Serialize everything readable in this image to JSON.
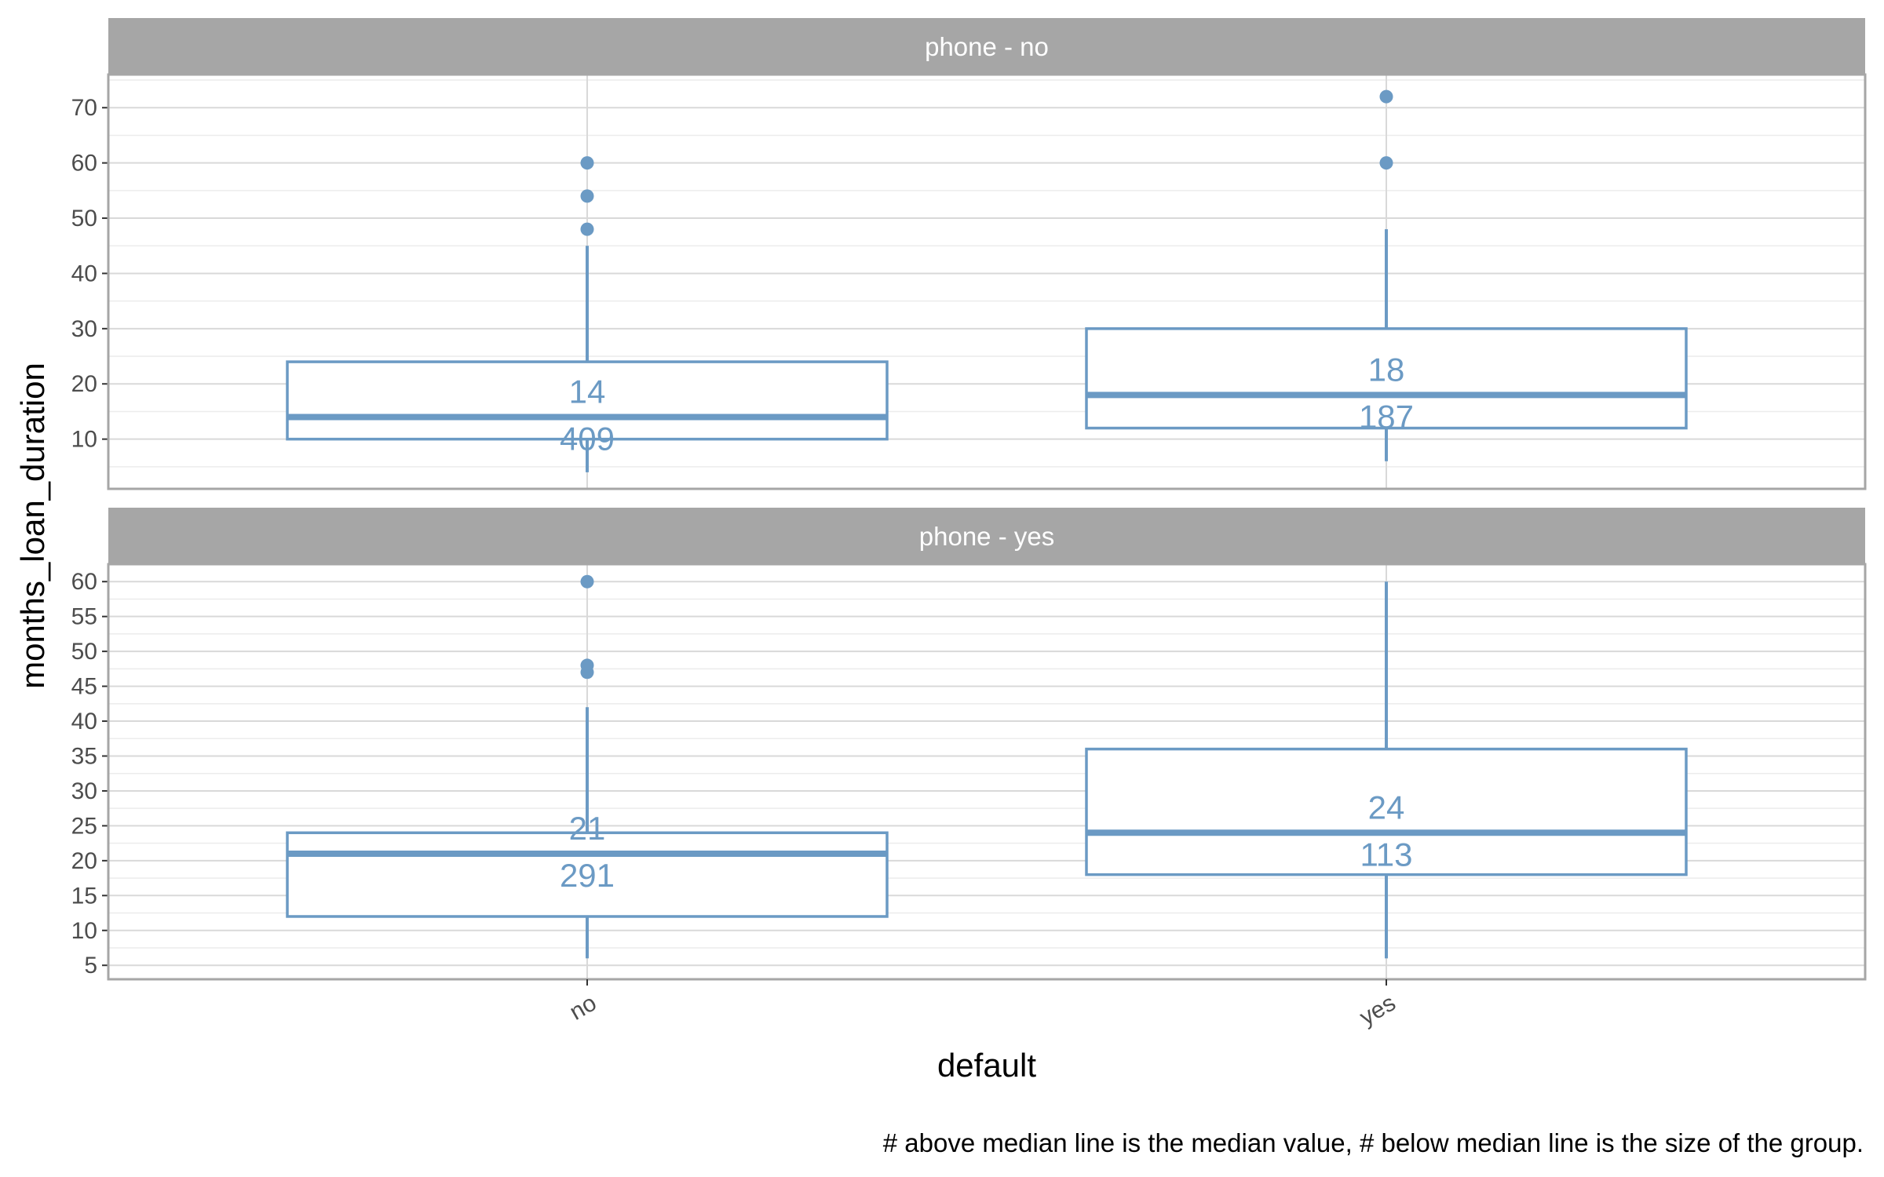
{
  "chart_data": {
    "type": "boxplot",
    "facet_by": "phone",
    "xlabel": "default",
    "ylabel": "months_loan_duration",
    "categories": [
      "no",
      "yes"
    ],
    "caption": "# above median line is the median value, # below median line is the size of the group.",
    "colors": {
      "box": "#6b9ac4",
      "strip": "#a6a6a6",
      "grid_major": "#d9d9d9",
      "grid_minor": "#ececec",
      "panel_border": "#a6a6a6"
    },
    "grid": true,
    "panels": [
      {
        "label": "phone - no",
        "ylim": [
          1,
          76
        ],
        "y_ticks": [
          10,
          20,
          30,
          40,
          50,
          60,
          70
        ],
        "groups": [
          {
            "category": "no",
            "whisker_low": 4,
            "q1": 10,
            "median": 14,
            "q3": 24,
            "whisker_high": 45,
            "outliers": [
              48,
              54,
              60
            ],
            "median_label": "14",
            "n_label": "409"
          },
          {
            "category": "yes",
            "whisker_low": 6,
            "q1": 12,
            "median": 18,
            "q3": 30,
            "whisker_high": 48,
            "outliers": [
              60,
              72
            ],
            "median_label": "18",
            "n_label": "187"
          }
        ]
      },
      {
        "label": "phone - yes",
        "ylim": [
          3,
          62.5
        ],
        "y_ticks": [
          5,
          10,
          15,
          20,
          25,
          30,
          35,
          40,
          45,
          50,
          55,
          60
        ],
        "groups": [
          {
            "category": "no",
            "whisker_low": 6,
            "q1": 12,
            "median": 21,
            "q3": 24,
            "whisker_high": 42,
            "outliers": [
              47,
              48,
              60
            ],
            "median_label": "21",
            "n_label": "291"
          },
          {
            "category": "yes",
            "whisker_low": 6,
            "q1": 18,
            "median": 24,
            "q3": 36,
            "whisker_high": 60,
            "outliers": [],
            "median_label": "24",
            "n_label": "113"
          }
        ]
      }
    ]
  }
}
